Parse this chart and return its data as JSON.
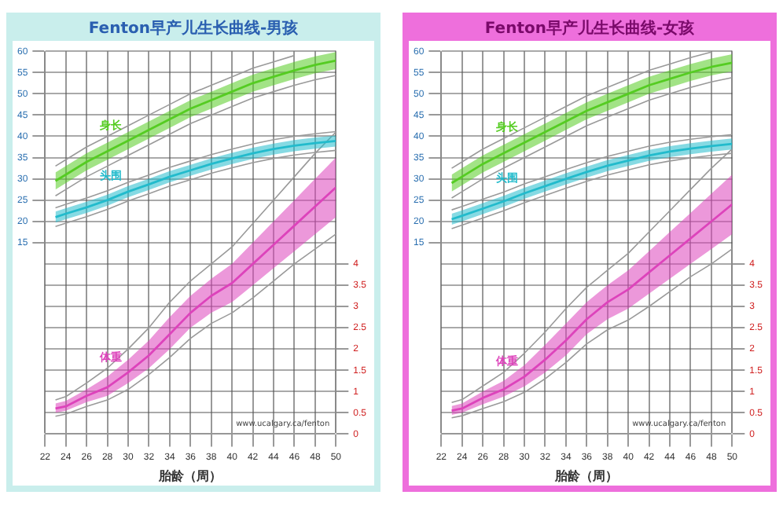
{
  "chart_data": [
    {
      "type": "line",
      "title": "Fenton早产儿生长曲线-男孩",
      "xlabel": "胎龄（周）",
      "xlim": [
        22,
        50
      ],
      "xticks": [
        22,
        24,
        26,
        28,
        30,
        32,
        34,
        36,
        38,
        40,
        42,
        44,
        46,
        48,
        50
      ],
      "ylim": [
        -30,
        60
      ],
      "yticks": [
        15,
        20,
        25,
        30,
        35,
        40,
        45,
        50,
        55,
        60
      ],
      "y2lim": [
        0,
        9
      ],
      "y2ticks": [
        0,
        0.5,
        1,
        1.5,
        2,
        2.5,
        3,
        3.5,
        4
      ],
      "grid": true,
      "legend": false,
      "marker": "none",
      "line_style": "solid",
      "annotations": [
        "www.ucalgary.ca/fenton"
      ],
      "x": [
        23,
        24,
        26,
        28,
        30,
        32,
        34,
        36,
        38,
        40,
        42,
        44,
        46,
        48,
        50
      ],
      "series": [
        {
          "name": "身长",
          "color": "#55cc22",
          "values": [
            29.5,
            31,
            34,
            36.5,
            39,
            41.5,
            44,
            46.5,
            48.5,
            50.5,
            52.5,
            54,
            55.5,
            56.8,
            57.8
          ],
          "lower": [
            27.5,
            29,
            32,
            34.5,
            37,
            39.5,
            42,
            44.5,
            46.5,
            48.5,
            50.5,
            52,
            53.5,
            54.8,
            55.8
          ],
          "upper": [
            31.5,
            33,
            36,
            38.5,
            41,
            43.5,
            46,
            48.5,
            50.5,
            52.5,
            54.5,
            56,
            57.5,
            58.8,
            59.8
          ]
        },
        {
          "color": "#9a9a9a",
          "values": [
            26,
            27.5,
            30.5,
            33,
            35.5,
            38,
            40.5,
            43,
            45,
            47,
            49,
            50.5,
            52,
            53.3,
            54.3
          ]
        },
        {
          "color": "#9a9a9a",
          "values": [
            33,
            34.5,
            37.5,
            40,
            42.5,
            45,
            47.5,
            50,
            52,
            54,
            56,
            57.5,
            59,
            null,
            null
          ]
        },
        {
          "name": "头围",
          "color": "#22bbcc",
          "values": [
            21,
            21.8,
            23.3,
            25,
            27,
            28.7,
            30.5,
            32,
            33.5,
            34.8,
            36,
            37,
            37.8,
            38.4,
            38.9
          ],
          "lower": [
            19.7,
            20.5,
            22,
            23.7,
            25.7,
            27.4,
            29.2,
            30.7,
            32.2,
            33.5,
            34.7,
            35.7,
            36.5,
            37.1,
            37.6
          ],
          "upper": [
            22.3,
            23.1,
            24.6,
            26.3,
            28.3,
            30,
            31.8,
            33.3,
            34.8,
            36.1,
            37.3,
            38.3,
            39.1,
            39.7,
            40.2
          ]
        },
        {
          "color": "#9a9a9a",
          "values": [
            18.8,
            19.6,
            21.1,
            22.8,
            24.8,
            26.5,
            28.3,
            29.8,
            31.3,
            32.6,
            33.8,
            34.8,
            35.6,
            36.2,
            36.7
          ]
        },
        {
          "color": "#9a9a9a",
          "values": [
            23.2,
            24,
            25.5,
            27.2,
            29.2,
            30.9,
            32.7,
            34.2,
            35.7,
            37,
            38.2,
            39.2,
            40,
            40.6,
            41.1
          ]
        },
        {
          "name": "体重",
          "color": "#dd44bb",
          "axis": "y2",
          "values": [
            0.6,
            0.65,
            0.9,
            1.1,
            1.45,
            1.85,
            2.35,
            2.85,
            3.25,
            3.55,
            4.0,
            4.45,
            4.9,
            5.35,
            5.8
          ],
          "lower": [
            0.5,
            0.55,
            0.75,
            0.9,
            1.2,
            1.55,
            2.0,
            2.5,
            2.85,
            3.1,
            3.5,
            3.9,
            4.3,
            4.7,
            5.1
          ],
          "upper": [
            0.72,
            0.78,
            1.05,
            1.35,
            1.75,
            2.2,
            2.75,
            3.25,
            3.65,
            4.0,
            4.5,
            5.0,
            5.5,
            6.0,
            6.5
          ]
        },
        {
          "color": "#9a9a9a",
          "axis": "y2",
          "values": [
            0.42,
            0.47,
            0.65,
            0.8,
            1.05,
            1.4,
            1.8,
            2.25,
            2.6,
            2.85,
            3.2,
            3.6,
            4.0,
            4.35,
            4.7
          ]
        },
        {
          "color": "#9a9a9a",
          "axis": "y2",
          "values": [
            0.8,
            0.88,
            1.2,
            1.55,
            2.0,
            2.5,
            3.1,
            3.6,
            4.0,
            4.4,
            4.95,
            5.5,
            6.05,
            6.6,
            7.1
          ]
        }
      ]
    },
    {
      "type": "line",
      "title": "Fenton早产儿生长曲线-女孩",
      "xlabel": "胎龄（周）",
      "xlim": [
        22,
        50
      ],
      "xticks": [
        22,
        24,
        26,
        28,
        30,
        32,
        34,
        36,
        38,
        40,
        42,
        44,
        46,
        48,
        50
      ],
      "ylim": [
        -30,
        60
      ],
      "yticks": [
        15,
        20,
        25,
        30,
        35,
        40,
        45,
        50,
        55,
        60
      ],
      "y2lim": [
        0,
        9
      ],
      "y2ticks": [
        0,
        0.5,
        1,
        1.5,
        2,
        2.5,
        3,
        3.5,
        4
      ],
      "grid": true,
      "legend": false,
      "marker": "none",
      "line_style": "solid",
      "annotations": [
        "www.ucalgary.ca/fenton"
      ],
      "x": [
        23,
        24,
        26,
        28,
        30,
        32,
        34,
        36,
        38,
        40,
        42,
        44,
        46,
        48,
        50
      ],
      "series": [
        {
          "name": "身长",
          "color": "#55cc22",
          "values": [
            29,
            30.5,
            33.5,
            36,
            38.5,
            41,
            43.5,
            46,
            48,
            50,
            52,
            53.5,
            55,
            56.3,
            57.3
          ],
          "lower": [
            27,
            28.5,
            31.5,
            34,
            36.5,
            39,
            41.5,
            44,
            46,
            48,
            50,
            51.5,
            53,
            54.3,
            55.3
          ],
          "upper": [
            31,
            32.5,
            35.5,
            38,
            40.5,
            43,
            45.5,
            48,
            50,
            52,
            54,
            55.5,
            57,
            58.3,
            59.3
          ]
        },
        {
          "color": "#9a9a9a",
          "values": [
            25.5,
            27,
            30,
            32.5,
            35,
            37.5,
            40,
            42.5,
            44.5,
            46.5,
            48.5,
            50,
            51.5,
            52.8,
            53.8
          ]
        },
        {
          "color": "#9a9a9a",
          "values": [
            32.5,
            34,
            37,
            39.5,
            42,
            44.5,
            47,
            49.5,
            51.5,
            53.5,
            55.5,
            57,
            58.5,
            59.8,
            null
          ]
        },
        {
          "name": "头围",
          "color": "#22bbcc",
          "values": [
            20.5,
            21.3,
            23,
            24.7,
            26.6,
            28.3,
            30,
            31.6,
            33.1,
            34.3,
            35.5,
            36.4,
            37.1,
            37.7,
            38.2
          ],
          "lower": [
            19.2,
            20,
            21.7,
            23.4,
            25.3,
            27,
            28.7,
            30.3,
            31.8,
            33,
            34.2,
            35.1,
            35.8,
            36.4,
            36.9
          ],
          "upper": [
            21.8,
            22.6,
            24.3,
            26,
            27.9,
            29.6,
            31.3,
            32.9,
            34.4,
            35.6,
            36.8,
            37.7,
            38.4,
            39,
            39.5
          ]
        },
        {
          "color": "#9a9a9a",
          "values": [
            18.3,
            19.1,
            20.8,
            22.5,
            24.4,
            26.1,
            27.8,
            29.4,
            30.9,
            32.1,
            33.3,
            34.2,
            34.9,
            35.5,
            36
          ]
        },
        {
          "color": "#9a9a9a",
          "values": [
            22.7,
            23.5,
            25.2,
            26.9,
            28.8,
            30.5,
            32.2,
            33.8,
            35.3,
            36.5,
            37.7,
            38.6,
            39.3,
            39.9,
            40.4
          ]
        },
        {
          "name": "体重",
          "color": "#dd44bb",
          "axis": "y2",
          "values": [
            0.55,
            0.6,
            0.85,
            1.05,
            1.35,
            1.75,
            2.2,
            2.7,
            3.1,
            3.4,
            3.8,
            4.2,
            4.6,
            5.0,
            5.4
          ],
          "lower": [
            0.45,
            0.5,
            0.7,
            0.88,
            1.12,
            1.45,
            1.85,
            2.35,
            2.7,
            2.95,
            3.3,
            3.65,
            4.0,
            4.35,
            4.7
          ],
          "upper": [
            0.66,
            0.72,
            1.0,
            1.25,
            1.62,
            2.1,
            2.6,
            3.1,
            3.5,
            3.85,
            4.3,
            4.75,
            5.2,
            5.65,
            6.1
          ]
        },
        {
          "color": "#9a9a9a",
          "axis": "y2",
          "values": [
            0.38,
            0.43,
            0.6,
            0.76,
            0.98,
            1.3,
            1.68,
            2.12,
            2.45,
            2.68,
            3.0,
            3.35,
            3.7,
            4.0,
            4.35
          ]
        },
        {
          "color": "#9a9a9a",
          "axis": "y2",
          "values": [
            0.74,
            0.81,
            1.13,
            1.45,
            1.9,
            2.4,
            2.95,
            3.45,
            3.85,
            4.25,
            4.75,
            5.25,
            5.75,
            6.25,
            6.7
          ]
        }
      ]
    }
  ]
}
